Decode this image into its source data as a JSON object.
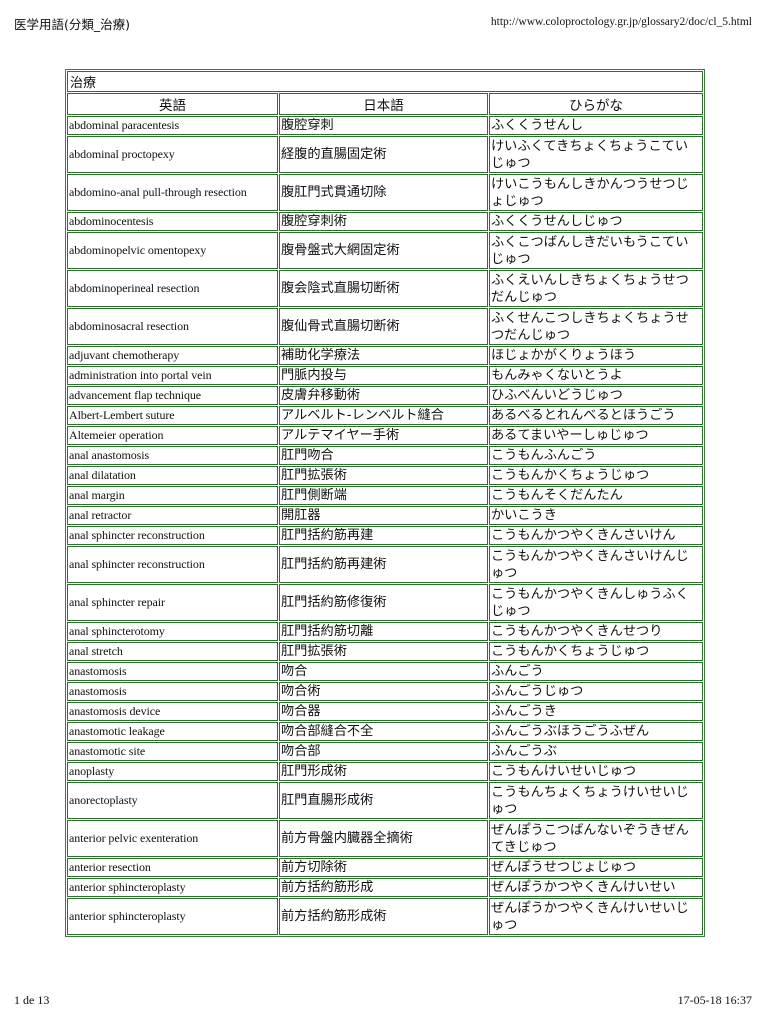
{
  "header": {
    "title": "医学用語(分類_治療)",
    "url": "http://www.coloproctology.gr.jp/glossary2/doc/cl_5.html"
  },
  "footer": {
    "page": "1 de 13",
    "datetime": "17-05-18 16:37"
  },
  "table": {
    "caption": "治療",
    "columns": [
      "英語",
      "日本語",
      "ひらがな"
    ],
    "rows": [
      {
        "en": "abdominal paracentesis",
        "ja": "腹腔穿刺",
        "kana": "ふくくうせんし"
      },
      {
        "en": "abdominal proctopexy",
        "ja": "経腹的直腸固定術",
        "kana": "けいふくてきちょくちょうこていじゅつ"
      },
      {
        "en": "abdomino-anal pull-through resection",
        "ja": "腹肛門式貫通切除",
        "kana": "けいこうもんしきかんつうせつじょじゅつ"
      },
      {
        "en": "abdominocentesis",
        "ja": "腹腔穿刺術",
        "kana": "ふくくうせんしじゅつ"
      },
      {
        "en": "abdominopelvic omentopexy",
        "ja": "腹骨盤式大網固定術",
        "kana": "ふくこつばんしきだいもうこていじゅつ"
      },
      {
        "en": "abdominoperineal resection",
        "ja": "腹会陰式直腸切断術",
        "kana": "ふくえいんしきちょくちょうせつだんじゅつ"
      },
      {
        "en": "abdominosacral resection",
        "ja": "腹仙骨式直腸切断術",
        "kana": "ふくせんこつしきちょくちょうせつだんじゅつ"
      },
      {
        "en": "adjuvant chemotherapy",
        "ja": "補助化学療法",
        "kana": "ほじょかがくりょうほう"
      },
      {
        "en": "administration into portal vein",
        "ja": "門脈内投与",
        "kana": "もんみゃくないとうよ"
      },
      {
        "en": "advancement flap technique",
        "ja": "皮膚弁移動術",
        "kana": "ひふべんいどうじゅつ"
      },
      {
        "en": "Albert-Lembert suture",
        "ja": "アルベルト-レンベルト縫合",
        "kana": "あるべるとれんべるとほうごう"
      },
      {
        "en": "Altemeier operation",
        "ja": "アルテマイヤー手術",
        "kana": "あるてまいやーしゅじゅつ"
      },
      {
        "en": "anal anastomosis",
        "ja": "肛門吻合",
        "kana": "こうもんふんごう"
      },
      {
        "en": "anal dilatation",
        "ja": "肛門拡張術",
        "kana": "こうもんかくちょうじゅつ"
      },
      {
        "en": "anal margin",
        "ja": "肛門側断端",
        "kana": "こうもんそくだんたん"
      },
      {
        "en": "anal retractor",
        "ja": "開肛器",
        "kana": "かいこうき"
      },
      {
        "en": "anal sphincter reconstruction",
        "ja": "肛門括約筋再建",
        "kana": "こうもんかつやくきんさいけん"
      },
      {
        "en": "anal sphincter reconstruction",
        "ja": "肛門括約筋再建術",
        "kana": "こうもんかつやくきんさいけんじゅつ"
      },
      {
        "en": "anal sphincter repair",
        "ja": "肛門括約筋修復術",
        "kana": "こうもんかつやくきんしゅうふくじゅつ"
      },
      {
        "en": "anal sphincterotomy",
        "ja": "肛門括約筋切離",
        "kana": "こうもんかつやくきんせつり"
      },
      {
        "en": "anal stretch",
        "ja": "肛門拡張術",
        "kana": "こうもんかくちょうじゅつ"
      },
      {
        "en": "anastomosis",
        "ja": "吻合",
        "kana": "ふんごう"
      },
      {
        "en": "anastomosis",
        "ja": "吻合術",
        "kana": "ふんごうじゅつ"
      },
      {
        "en": "anastomosis device",
        "ja": "吻合器",
        "kana": "ふんごうき"
      },
      {
        "en": "anastomotic leakage",
        "ja": "吻合部縫合不全",
        "kana": "ふんごうぶほうごうふぜん"
      },
      {
        "en": "anastomotic site",
        "ja": "吻合部",
        "kana": "ふんごうぶ"
      },
      {
        "en": "anoplasty",
        "ja": "肛門形成術",
        "kana": "こうもんけいせいじゅつ"
      },
      {
        "en": "anorectoplasty",
        "ja": "肛門直腸形成術",
        "kana": "こうもんちょくちょうけいせいじゅつ"
      },
      {
        "en": "anterior pelvic exenteration",
        "ja": "前方骨盤内臓器全摘術",
        "kana": "ぜんぽうこつばんないぞうきぜんてきじゅつ"
      },
      {
        "en": "anterior resection",
        "ja": "前方切除術",
        "kana": "ぜんぽうせつじょじゅつ"
      },
      {
        "en": "anterior sphincteroplasty",
        "ja": "前方括約筋形成",
        "kana": "ぜんぽうかつやくきんけいせい"
      },
      {
        "en": "anterior sphincteroplasty",
        "ja": "前方括約筋形成術",
        "kana": "ぜんぽうかつやくきんけいせいじゅつ"
      }
    ]
  }
}
